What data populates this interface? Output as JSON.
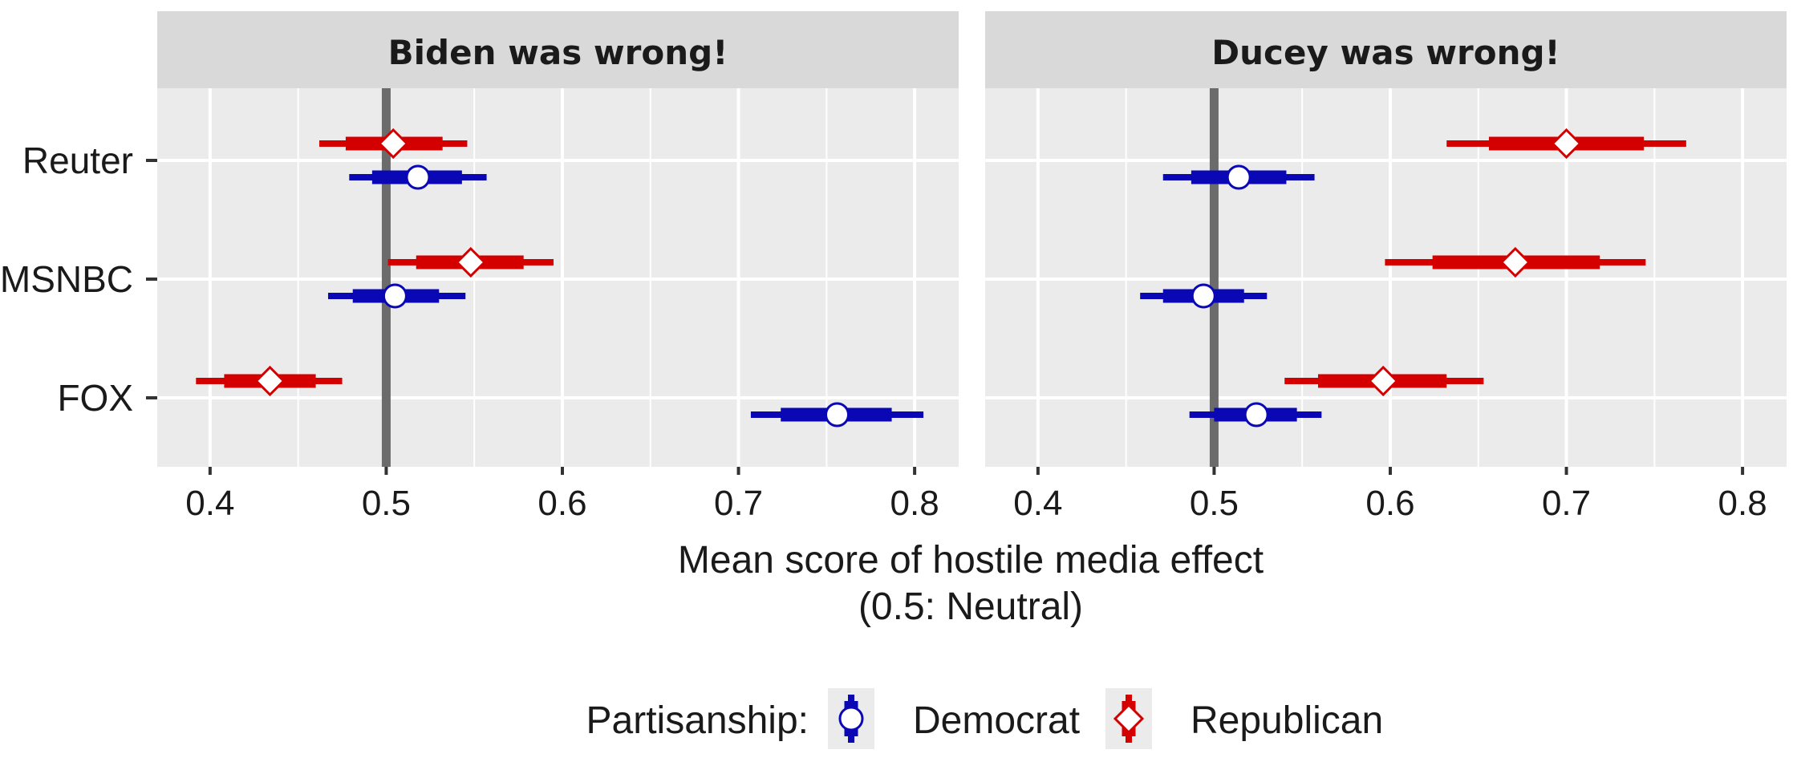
{
  "chart_data": {
    "type": "scatter",
    "subtype": "dot-and-interval",
    "facets": [
      "Biden was wrong!",
      "Ducey was wrong!"
    ],
    "y_categories": [
      "Reuter",
      "MSNBC",
      "FOX"
    ],
    "xlim": [
      0.37,
      0.825
    ],
    "x_ticks": [
      0.4,
      0.5,
      0.6,
      0.7,
      0.8
    ],
    "x_tick_labels": [
      "0.4",
      "0.5",
      "0.6",
      "0.7",
      "0.8"
    ],
    "reference_line": 0.5,
    "xlabel_line1": "Mean score of hostile media effect",
    "xlabel_line2": "(0.5: Neutral)",
    "ylabel": "",
    "grid": true,
    "legend": {
      "title": "Partisanship:",
      "position": "bottom",
      "entries": [
        {
          "name": "Democrat",
          "color": "#0a07b5",
          "marker": "circle"
        },
        {
          "name": "Republican",
          "color": "#d40000",
          "marker": "diamond"
        }
      ]
    },
    "series": [
      {
        "name": "Democrat",
        "color": "#0a07b5",
        "marker": "circle",
        "points": [
          {
            "facet": "Biden was wrong!",
            "category": "Reuter",
            "mean": 0.518,
            "inner": [
              0.492,
              0.543
            ],
            "outer": [
              0.479,
              0.557
            ]
          },
          {
            "facet": "Biden was wrong!",
            "category": "MSNBC",
            "mean": 0.505,
            "inner": [
              0.481,
              0.53
            ],
            "outer": [
              0.467,
              0.545
            ]
          },
          {
            "facet": "Biden was wrong!",
            "category": "FOX",
            "mean": 0.756,
            "inner": [
              0.724,
              0.787
            ],
            "outer": [
              0.707,
              0.805
            ]
          },
          {
            "facet": "Ducey was wrong!",
            "category": "Reuter",
            "mean": 0.514,
            "inner": [
              0.487,
              0.541
            ],
            "outer": [
              0.471,
              0.557
            ]
          },
          {
            "facet": "Ducey was wrong!",
            "category": "MSNBC",
            "mean": 0.494,
            "inner": [
              0.471,
              0.517
            ],
            "outer": [
              0.458,
              0.53
            ]
          },
          {
            "facet": "Ducey was wrong!",
            "category": "FOX",
            "mean": 0.524,
            "inner": [
              0.5,
              0.547
            ],
            "outer": [
              0.486,
              0.561
            ]
          }
        ]
      },
      {
        "name": "Republican",
        "color": "#d40000",
        "marker": "diamond",
        "points": [
          {
            "facet": "Biden was wrong!",
            "category": "Reuter",
            "mean": 0.504,
            "inner": [
              0.477,
              0.532
            ],
            "outer": [
              0.462,
              0.546
            ]
          },
          {
            "facet": "Biden was wrong!",
            "category": "MSNBC",
            "mean": 0.548,
            "inner": [
              0.517,
              0.578
            ],
            "outer": [
              0.501,
              0.595
            ]
          },
          {
            "facet": "Biden was wrong!",
            "category": "FOX",
            "mean": 0.434,
            "inner": [
              0.408,
              0.46
            ],
            "outer": [
              0.392,
              0.475
            ]
          },
          {
            "facet": "Ducey was wrong!",
            "category": "Reuter",
            "mean": 0.7,
            "inner": [
              0.656,
              0.744
            ],
            "outer": [
              0.632,
              0.768
            ]
          },
          {
            "facet": "Ducey was wrong!",
            "category": "MSNBC",
            "mean": 0.671,
            "inner": [
              0.624,
              0.719
            ],
            "outer": [
              0.597,
              0.745
            ]
          },
          {
            "facet": "Ducey was wrong!",
            "category": "FOX",
            "mean": 0.596,
            "inner": [
              0.559,
              0.632
            ],
            "outer": [
              0.54,
              0.653
            ]
          }
        ]
      }
    ]
  }
}
